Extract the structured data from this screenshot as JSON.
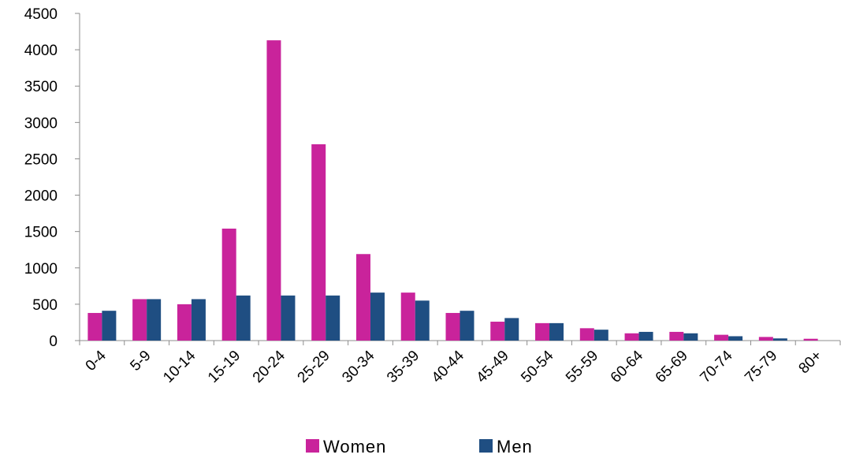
{
  "chart_data": {
    "type": "bar",
    "categories": [
      "0-4",
      "5-9",
      "10-14",
      "15-19",
      "20-24",
      "25-29",
      "30-34",
      "35-39",
      "40-44",
      "45-49",
      "50-54",
      "55-59",
      "60-64",
      "65-69",
      "70-74",
      "75-79",
      "80+"
    ],
    "series": [
      {
        "name": "Women",
        "color": "#c9239b",
        "values": [
          380,
          570,
          500,
          1540,
          4130,
          2700,
          1190,
          660,
          380,
          260,
          240,
          170,
          100,
          120,
          80,
          50,
          25
        ]
      },
      {
        "name": "Men",
        "color": "#1f4e82",
        "values": [
          410,
          570,
          570,
          620,
          620,
          620,
          660,
          550,
          410,
          310,
          240,
          150,
          120,
          100,
          60,
          30,
          0
        ]
      }
    ],
    "ylim": [
      0,
      4500
    ],
    "yticks": [
      "0",
      "500",
      "1000",
      "1500",
      "2000",
      "2500",
      "3000",
      "3500",
      "4000",
      "4500"
    ],
    "ytick_values": [
      0,
      500,
      1000,
      1500,
      2000,
      2500,
      3000,
      3500,
      4000,
      4500
    ],
    "grid": false,
    "legend_position": "bottom"
  }
}
